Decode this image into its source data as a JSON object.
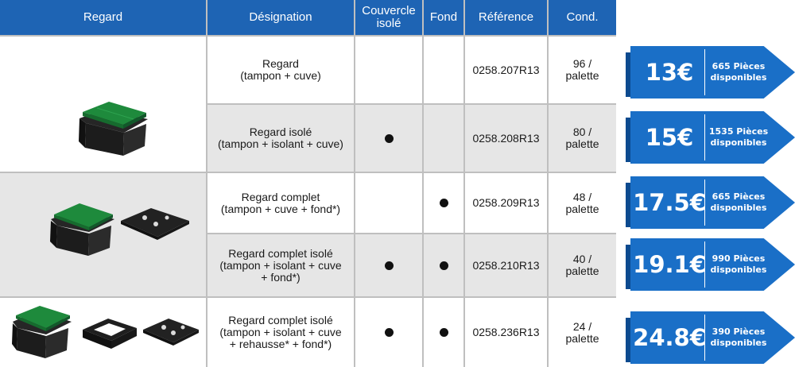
{
  "headers": [
    "Regard",
    "Désignation",
    "Couvercle\nisolé",
    "Fond",
    "Référence",
    "Cond."
  ],
  "rows": [
    {
      "designation": "Regard\n(tampon + cuve)",
      "couvercle": false,
      "fond": false,
      "reference": "0258.207R13",
      "cond": "96 /\npalette",
      "price": "13€",
      "stock": "665 Pièces\ndisponibles"
    },
    {
      "designation": "Regard isolé\n(tampon + isolant + cuve)",
      "couvercle": true,
      "fond": false,
      "reference": "0258.208R13",
      "cond": "80 /\npalette",
      "price": "15€",
      "stock": "1535 Pièces\ndisponibles"
    },
    {
      "designation": "Regard complet\n(tampon + cuve + fond*)",
      "couvercle": false,
      "fond": true,
      "reference": "0258.209R13",
      "cond": "48 /\npalette",
      "price": "17.5€",
      "stock": "665 Pièces\ndisponibles"
    },
    {
      "designation": "Regard complet isolé\n(tampon + isolant + cuve\n+ fond*)",
      "couvercle": true,
      "fond": true,
      "reference": "0258.210R13",
      "cond": "40 /\npalette",
      "price": "19.1€",
      "stock": "990 Pièces\ndisponibles"
    },
    {
      "designation": "Regard complet isolé\n(tampon + isolant + cuve\n+ rehausse* + fond*)",
      "couvercle": true,
      "fond": true,
      "reference": "0258.236R13",
      "cond": "24 /\npalette",
      "price": "24.8€",
      "stock": "390 Pièces\ndisponibles"
    }
  ],
  "colors": {
    "header": "#1e64b4",
    "banner": "#1a6fc7",
    "banner_dark": "#0c4a8f",
    "lid_green": "#1e8a3c"
  }
}
